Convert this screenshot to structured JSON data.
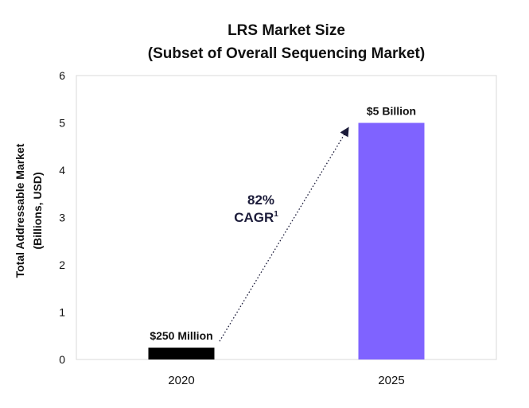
{
  "chart_data": {
    "type": "bar",
    "title": "LRS Market Size",
    "subtitle": "(Subset of Overall Sequencing Market)",
    "ylabel_lines": [
      "Total Addressable Market",
      "(Billions, USD)"
    ],
    "xlabel": "",
    "categories": [
      "2020",
      "2025"
    ],
    "values": [
      0.25,
      5
    ],
    "data_labels": [
      "$250 Million",
      "$5 Billion"
    ],
    "bar_colors": [
      "#000000",
      "#7f63ff"
    ],
    "ylim": [
      0,
      6
    ],
    "yticks": [
      "0",
      "1",
      "2",
      "3",
      "4",
      "5",
      "6"
    ],
    "grid": false,
    "legend": "none",
    "annotation": {
      "line1": "82%",
      "line2": "CAGR",
      "superscript": "1",
      "arrow": "dotted arrow from 2020 bar to 2025 bar",
      "color": "#1c1c3a"
    }
  }
}
